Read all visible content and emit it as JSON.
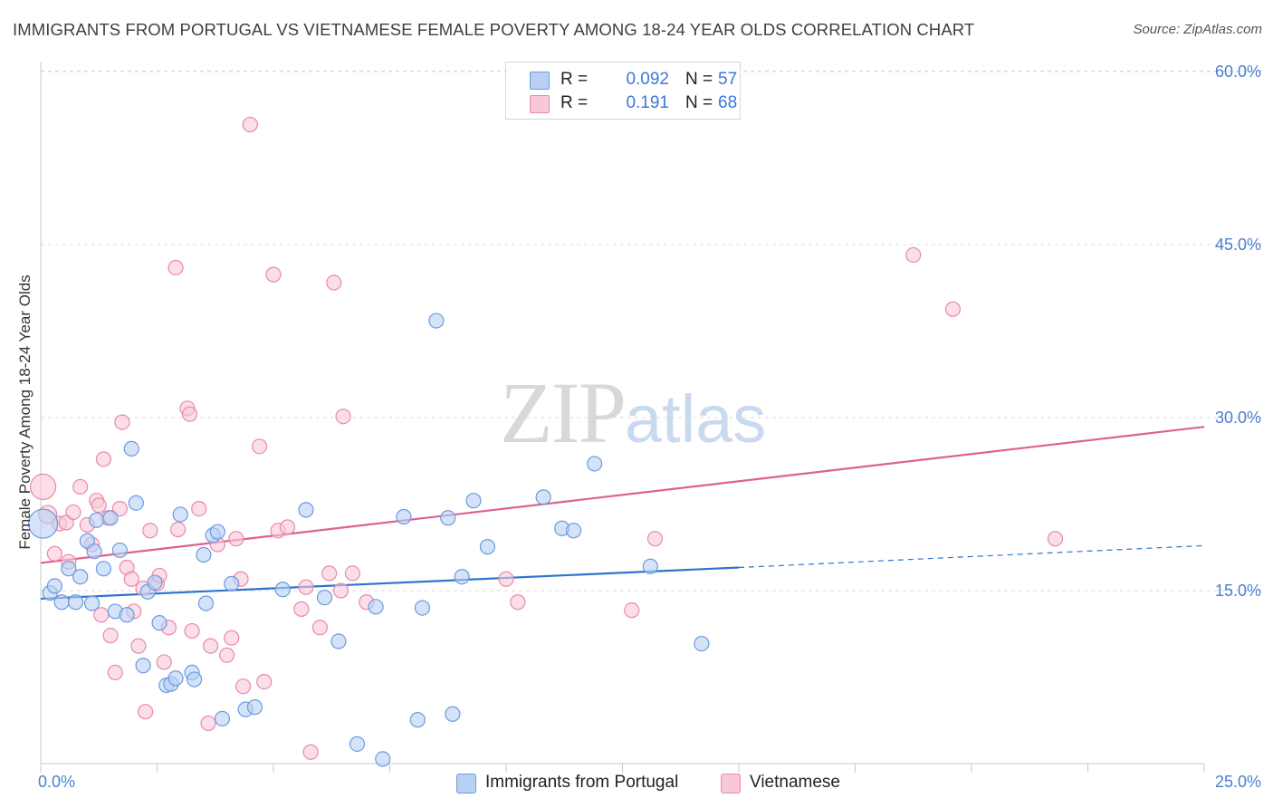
{
  "title": "IMMIGRANTS FROM PORTUGAL VS VIETNAMESE FEMALE POVERTY AMONG 18-24 YEAR OLDS CORRELATION CHART",
  "source": "Source: ZipAtlas.com",
  "watermark": {
    "zip": "ZIP",
    "atlas": "atlas"
  },
  "legend": {
    "rows": [
      {
        "r_label": "R =",
        "r_value": "0.092",
        "n_label": "N =",
        "n_value": "57"
      },
      {
        "r_label": "R =",
        "r_value": "0.191",
        "n_label": "N =",
        "n_value": "68"
      }
    ]
  },
  "bottom_legend": [
    "Immigrants from Portugal",
    "Vietnamese"
  ],
  "colors": {
    "blue_fill": "#b8d1f3",
    "blue_stroke": "#6b9be0",
    "blue_line": "#2f74d0",
    "pink_fill": "#f8c8d8",
    "pink_stroke": "#e88aaa",
    "pink_line": "#e0608e",
    "grid": "#d9d9d9",
    "tick_text": "#4a7fd0"
  },
  "chart_data": {
    "type": "scatter",
    "title": "IMMIGRANTS FROM PORTUGAL VS VIETNAMESE FEMALE POVERTY AMONG 18-24 YEAR OLDS CORRELATION CHART",
    "xlabel": "",
    "ylabel": "Female Poverty Among 18-24 Year Olds",
    "xlim": [
      0,
      25
    ],
    "ylim": [
      0,
      62
    ],
    "x_tick_labels": [
      {
        "value": 0,
        "label": "0.0%"
      },
      {
        "value": 25,
        "label": "25.0%"
      }
    ],
    "y_tick_labels": [
      {
        "value": 15,
        "label": "15.0%"
      },
      {
        "value": 30,
        "label": "30.0%"
      },
      {
        "value": 45,
        "label": "45.0%"
      },
      {
        "value": 60,
        "label": "60.0%"
      }
    ],
    "grid": true,
    "series": [
      {
        "name": "Immigrants from Portugal",
        "color": "blue",
        "trend": {
          "x0": 0.0,
          "y0": 14.3,
          "x1": 15.0,
          "y1": 17.0,
          "dashed_to_x": 25.0,
          "dashed_to_y": 18.9
        },
        "points": [
          [
            0.05,
            20.8,
            16
          ],
          [
            0.2,
            14.8,
            8
          ],
          [
            0.3,
            15.4,
            8
          ],
          [
            0.45,
            14.0,
            8
          ],
          [
            0.6,
            16.9,
            8
          ],
          [
            0.75,
            14.0,
            8
          ],
          [
            0.85,
            16.2,
            8
          ],
          [
            1.0,
            19.3,
            8
          ],
          [
            1.1,
            13.9,
            8
          ],
          [
            1.15,
            18.4,
            8
          ],
          [
            1.2,
            21.1,
            8
          ],
          [
            1.35,
            16.9,
            8
          ],
          [
            1.5,
            21.3,
            8
          ],
          [
            1.6,
            13.2,
            8
          ],
          [
            1.7,
            18.5,
            8
          ],
          [
            1.85,
            12.9,
            8
          ],
          [
            1.95,
            27.3,
            8
          ],
          [
            2.05,
            22.6,
            8
          ],
          [
            2.2,
            8.5,
            8
          ],
          [
            2.3,
            14.9,
            8
          ],
          [
            2.45,
            15.7,
            8
          ],
          [
            2.55,
            12.2,
            8
          ],
          [
            2.7,
            6.8,
            8
          ],
          [
            2.8,
            6.9,
            8
          ],
          [
            2.9,
            7.4,
            8
          ],
          [
            3.0,
            21.6,
            8
          ],
          [
            3.25,
            7.9,
            8
          ],
          [
            3.3,
            7.3,
            8
          ],
          [
            3.5,
            18.1,
            8
          ],
          [
            3.55,
            13.9,
            8
          ],
          [
            3.7,
            19.8,
            8
          ],
          [
            3.8,
            20.1,
            8
          ],
          [
            3.9,
            3.9,
            8
          ],
          [
            4.1,
            15.6,
            8
          ],
          [
            4.4,
            4.7,
            8
          ],
          [
            4.6,
            4.9,
            8
          ],
          [
            5.2,
            15.1,
            8
          ],
          [
            5.7,
            22.0,
            8
          ],
          [
            6.1,
            14.4,
            8
          ],
          [
            6.4,
            10.6,
            8
          ],
          [
            6.8,
            1.7,
            8
          ],
          [
            7.2,
            13.6,
            8
          ],
          [
            7.35,
            0.4,
            8
          ],
          [
            7.8,
            21.4,
            8
          ],
          [
            8.1,
            3.8,
            8
          ],
          [
            8.2,
            13.5,
            8
          ],
          [
            8.5,
            38.4,
            8
          ],
          [
            8.75,
            21.3,
            8
          ],
          [
            8.85,
            4.3,
            8
          ],
          [
            9.05,
            16.2,
            8
          ],
          [
            9.3,
            22.8,
            8
          ],
          [
            9.6,
            18.8,
            8
          ],
          [
            10.8,
            23.1,
            8
          ],
          [
            11.2,
            20.4,
            8
          ],
          [
            11.45,
            20.2,
            8
          ],
          [
            11.9,
            26.0,
            8
          ],
          [
            13.1,
            17.1,
            8
          ],
          [
            14.2,
            10.4,
            8
          ]
        ]
      },
      {
        "name": "Vietnamese",
        "color": "pink",
        "trend": {
          "x0": 0.0,
          "y0": 17.4,
          "x1": 25.0,
          "y1": 29.2
        },
        "points": [
          [
            0.05,
            24.0,
            14
          ],
          [
            0.15,
            21.6,
            10
          ],
          [
            0.3,
            18.2,
            8
          ],
          [
            0.4,
            20.8,
            8
          ],
          [
            0.55,
            20.9,
            8
          ],
          [
            0.6,
            17.5,
            8
          ],
          [
            0.7,
            21.8,
            8
          ],
          [
            0.85,
            24.0,
            8
          ],
          [
            1.0,
            20.7,
            8
          ],
          [
            1.1,
            19.0,
            8
          ],
          [
            1.2,
            22.8,
            8
          ],
          [
            1.25,
            22.4,
            8
          ],
          [
            1.3,
            12.9,
            8
          ],
          [
            1.35,
            26.4,
            8
          ],
          [
            1.45,
            21.3,
            8
          ],
          [
            1.5,
            11.1,
            8
          ],
          [
            1.6,
            7.9,
            8
          ],
          [
            1.7,
            22.1,
            8
          ],
          [
            1.75,
            29.6,
            8
          ],
          [
            1.85,
            17.0,
            8
          ],
          [
            1.95,
            16.0,
            8
          ],
          [
            2.0,
            13.2,
            8
          ],
          [
            2.1,
            10.2,
            8
          ],
          [
            2.2,
            15.2,
            8
          ],
          [
            2.25,
            4.5,
            8
          ],
          [
            2.35,
            20.2,
            8
          ],
          [
            2.5,
            15.6,
            8
          ],
          [
            2.55,
            16.3,
            8
          ],
          [
            2.65,
            8.8,
            8
          ],
          [
            2.75,
            11.8,
            8
          ],
          [
            2.9,
            43.0,
            8
          ],
          [
            2.95,
            20.3,
            8
          ],
          [
            3.15,
            30.8,
            8
          ],
          [
            3.2,
            30.3,
            8
          ],
          [
            3.25,
            11.5,
            8
          ],
          [
            3.4,
            22.1,
            8
          ],
          [
            3.6,
            3.5,
            8
          ],
          [
            3.65,
            10.2,
            8
          ],
          [
            3.8,
            19.0,
            8
          ],
          [
            4.0,
            9.4,
            8
          ],
          [
            4.1,
            10.9,
            8
          ],
          [
            4.2,
            19.5,
            8
          ],
          [
            4.3,
            16.0,
            8
          ],
          [
            4.35,
            6.7,
            8
          ],
          [
            4.5,
            55.4,
            8
          ],
          [
            4.7,
            27.5,
            8
          ],
          [
            4.8,
            7.1,
            8
          ],
          [
            5.0,
            42.4,
            8
          ],
          [
            5.1,
            20.2,
            8
          ],
          [
            5.3,
            20.5,
            8
          ],
          [
            5.6,
            13.4,
            8
          ],
          [
            5.7,
            15.3,
            8
          ],
          [
            5.8,
            1.0,
            8
          ],
          [
            6.0,
            11.8,
            8
          ],
          [
            6.2,
            16.5,
            8
          ],
          [
            6.3,
            41.7,
            8
          ],
          [
            6.45,
            15.0,
            8
          ],
          [
            6.5,
            30.1,
            8
          ],
          [
            6.7,
            16.5,
            8
          ],
          [
            7.0,
            14.0,
            8
          ],
          [
            10.0,
            16.0,
            8
          ],
          [
            10.25,
            14.0,
            8
          ],
          [
            12.7,
            13.3,
            8
          ],
          [
            13.2,
            19.5,
            8
          ],
          [
            18.75,
            44.1,
            8
          ],
          [
            19.6,
            39.4,
            8
          ],
          [
            21.8,
            19.5,
            8
          ]
        ]
      }
    ]
  }
}
